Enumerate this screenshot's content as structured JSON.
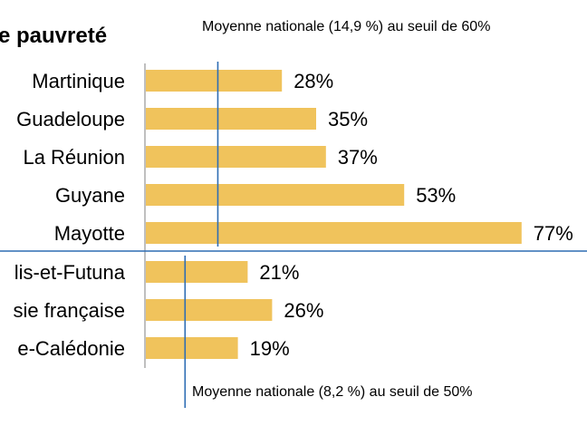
{
  "chart_data": {
    "type": "bar",
    "orientation": "horizontal",
    "title": "e pauvreté",
    "xlim": [
      0,
      80
    ],
    "groups": [
      {
        "categories": [
          "Martinique",
          "Guadeloupe",
          "La Réunion",
          "Guyane",
          "Mayotte"
        ],
        "values": [
          28,
          35,
          37,
          53,
          77
        ],
        "value_labels": [
          "28%",
          "35%",
          "37%",
          "53%",
          "77%"
        ],
        "reference_line": {
          "value": 14.9,
          "label": "Moyenne nationale (14,9 %) au seuil de 60%"
        }
      },
      {
        "categories": [
          "lis-et-Futuna",
          "sie française",
          "e-Calédonie"
        ],
        "values": [
          21,
          26,
          19
        ],
        "value_labels": [
          "21%",
          "26%",
          "19%"
        ],
        "reference_line": {
          "value": 8.2,
          "label": "Moyenne nationale (8,2 %) au seuil de 50%"
        }
      }
    ],
    "bar_color": "#f0c35c",
    "reference_line_color": "#2e6db4",
    "grid": false,
    "legend": "none"
  }
}
